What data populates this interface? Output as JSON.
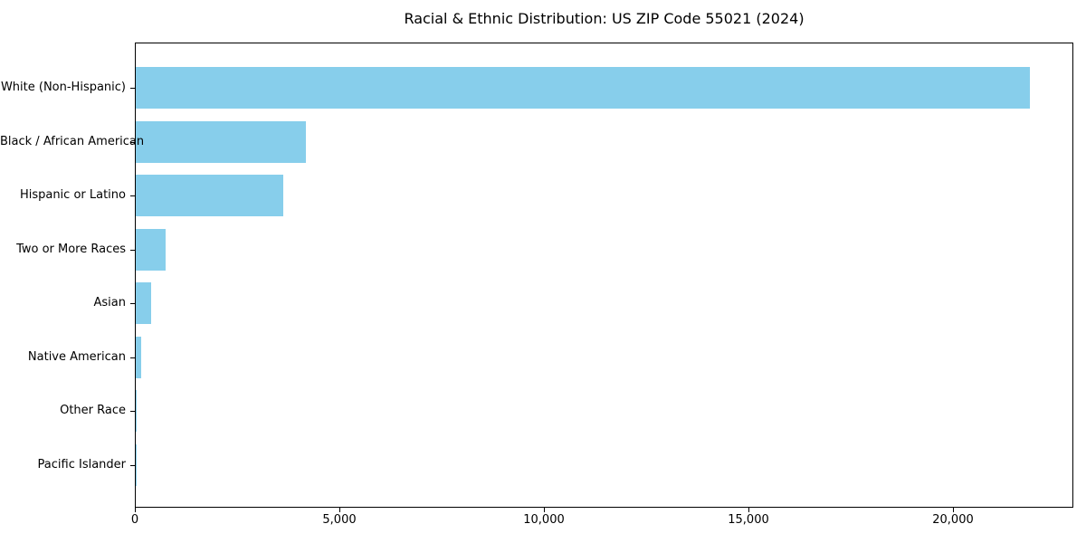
{
  "chart_data": {
    "type": "bar",
    "orientation": "horizontal",
    "title": "Racial & Ethnic Distribution: US ZIP Code 55021 (2024)",
    "xlabel": "",
    "ylabel": "",
    "categories": [
      "White (Non-Hispanic)",
      "Black / African American",
      "Hispanic or Latino",
      "Two or More Races",
      "Asian",
      "Native American",
      "Other Race",
      "Pacific Islander"
    ],
    "values": [
      21840,
      4160,
      3610,
      730,
      375,
      130,
      25,
      10
    ],
    "xlim": [
      0,
      22932
    ],
    "x_ticks": [
      0,
      5000,
      10000,
      15000,
      20000
    ],
    "x_tick_labels": [
      "0",
      "5,000",
      "10,000",
      "15,000",
      "20,000"
    ],
    "bar_color": "#87CEEB",
    "axis_color": "#000000",
    "background": "#ffffff",
    "grid": false,
    "legend": null
  }
}
